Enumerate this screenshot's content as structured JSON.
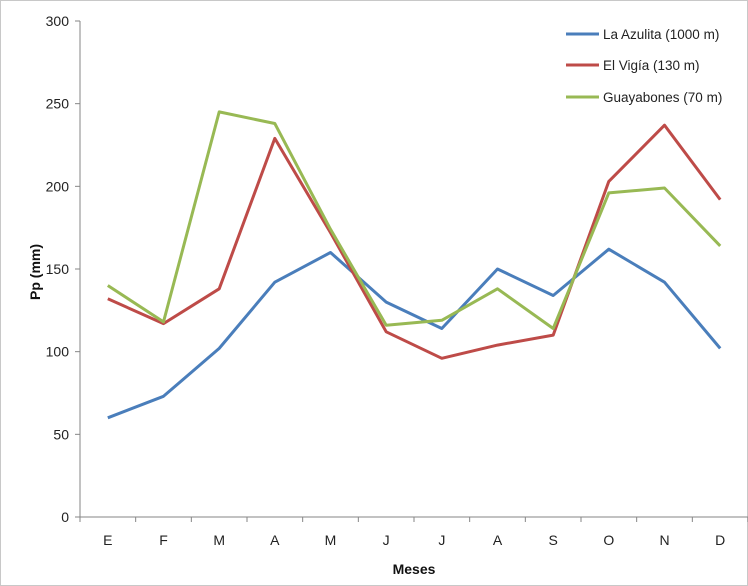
{
  "chart_data": {
    "type": "line",
    "title": "",
    "xlabel": "Meses",
    "ylabel": "Pp (mm)",
    "categories": [
      "E",
      "F",
      "M",
      "A",
      "M",
      "J",
      "J",
      "A",
      "S",
      "O",
      "N",
      "D"
    ],
    "ylim": [
      0,
      300
    ],
    "yticks": [
      0,
      50,
      100,
      150,
      200,
      250,
      300
    ],
    "grid": false,
    "legend_position": "top-right",
    "series": [
      {
        "name": "La Azulita (1000 m)",
        "color": "#4a7ebb",
        "values": [
          60,
          73,
          102,
          142,
          160,
          130,
          114,
          150,
          134,
          162,
          142,
          102
        ]
      },
      {
        "name": "El Vigía (130 m)",
        "color": "#be4b48",
        "values": [
          132,
          117,
          138,
          229,
          172,
          112,
          96,
          104,
          110,
          203,
          237,
          192
        ]
      },
      {
        "name": "Guayabones (70 m)",
        "color": "#98b954",
        "values": [
          140,
          118,
          245,
          238,
          174,
          116,
          119,
          138,
          114,
          196,
          199,
          164
        ]
      }
    ]
  }
}
